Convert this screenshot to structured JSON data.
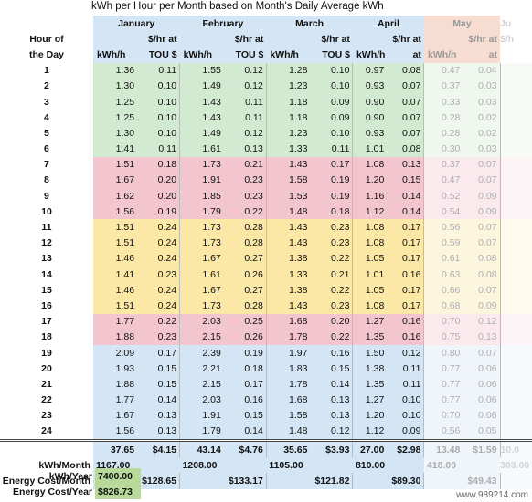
{
  "title": "kWh per Hour per Month based on Month's Daily Average kWh",
  "header": {
    "hour_line1": "Hour of",
    "hour_line2": "the Day",
    "kwh_label": "kWh/h",
    "tou_line1": "$/hr at",
    "tou_line2": "TOU $",
    "at_label": "at"
  },
  "months": [
    {
      "name": "January",
      "tou_header": "TOU $",
      "kwh": [
        "1.36",
        "1.30",
        "1.25",
        "1.25",
        "1.30",
        "1.41",
        "1.51",
        "1.67",
        "1.62",
        "1.56",
        "1.51",
        "1.51",
        "1.46",
        "1.41",
        "1.46",
        "1.51",
        "1.77",
        "1.88",
        "2.09",
        "1.93",
        "1.88",
        "1.77",
        "1.67",
        "1.56"
      ],
      "tou": [
        "0.11",
        "0.10",
        "0.10",
        "0.10",
        "0.10",
        "0.11",
        "0.18",
        "0.20",
        "0.20",
        "0.19",
        "0.24",
        "0.24",
        "0.24",
        "0.23",
        "0.24",
        "0.24",
        "0.22",
        "0.23",
        "0.17",
        "0.15",
        "0.15",
        "0.14",
        "0.13",
        "0.13"
      ],
      "total_kwh": "37.65",
      "total_tou": "$4.15",
      "kwh_month": "1167.00",
      "cost_month": "$128.65"
    },
    {
      "name": "February",
      "tou_header": "TOU $",
      "kwh": [
        "1.55",
        "1.49",
        "1.43",
        "1.43",
        "1.49",
        "1.61",
        "1.73",
        "1.91",
        "1.85",
        "1.79",
        "1.73",
        "1.73",
        "1.67",
        "1.61",
        "1.67",
        "1.73",
        "2.03",
        "2.15",
        "2.39",
        "2.21",
        "2.15",
        "2.03",
        "1.91",
        "1.79"
      ],
      "tou": [
        "0.12",
        "0.12",
        "0.11",
        "0.11",
        "0.12",
        "0.13",
        "0.21",
        "0.23",
        "0.23",
        "0.22",
        "0.28",
        "0.28",
        "0.27",
        "0.26",
        "0.27",
        "0.28",
        "0.25",
        "0.26",
        "0.19",
        "0.18",
        "0.17",
        "0.16",
        "0.15",
        "0.14"
      ],
      "total_kwh": "43.14",
      "total_tou": "$4.76",
      "kwh_month": "1208.00",
      "cost_month": "$133.17"
    },
    {
      "name": "March",
      "tou_header": "TOU $",
      "kwh": [
        "1.28",
        "1.23",
        "1.18",
        "1.18",
        "1.23",
        "1.33",
        "1.43",
        "1.58",
        "1.53",
        "1.48",
        "1.43",
        "1.43",
        "1.38",
        "1.33",
        "1.38",
        "1.43",
        "1.68",
        "1.78",
        "1.97",
        "1.83",
        "1.78",
        "1.68",
        "1.58",
        "1.48"
      ],
      "tou": [
        "0.10",
        "0.10",
        "0.09",
        "0.09",
        "0.10",
        "0.11",
        "0.17",
        "0.19",
        "0.19",
        "0.18",
        "0.23",
        "0.23",
        "0.22",
        "0.21",
        "0.22",
        "0.23",
        "0.20",
        "0.22",
        "0.16",
        "0.15",
        "0.14",
        "0.13",
        "0.13",
        "0.12"
      ],
      "total_kwh": "35.65",
      "total_tou": "$3.93",
      "kwh_month": "1105.00",
      "cost_month": "$121.82"
    },
    {
      "name": "April",
      "tou_header": "at",
      "kwh": [
        "0.97",
        "0.93",
        "0.90",
        "0.90",
        "0.93",
        "1.01",
        "1.08",
        "1.20",
        "1.16",
        "1.12",
        "1.08",
        "1.08",
        "1.05",
        "1.01",
        "1.05",
        "1.08",
        "1.27",
        "1.35",
        "1.50",
        "1.38",
        "1.35",
        "1.27",
        "1.20",
        "1.12"
      ],
      "tou": [
        "0.08",
        "0.07",
        "0.07",
        "0.07",
        "0.07",
        "0.08",
        "0.13",
        "0.15",
        "0.14",
        "0.14",
        "0.17",
        "0.17",
        "0.17",
        "0.16",
        "0.17",
        "0.17",
        "0.16",
        "0.16",
        "0.12",
        "0.11",
        "0.11",
        "0.10",
        "0.10",
        "0.09"
      ],
      "total_kwh": "27.00",
      "total_tou": "$2.98",
      "kwh_month": "810.00",
      "cost_month": "$89.30"
    },
    {
      "name": "May",
      "tou_header": "at",
      "kwh": [
        "0.47",
        "0.37",
        "0.33",
        "0.28",
        "0.28",
        "0.30",
        "0.37",
        "0.47",
        "0.52",
        "0.54",
        "0.56",
        "0.59",
        "0.61",
        "0.63",
        "0.66",
        "0.68",
        "0.70",
        "0.75",
        "0.80",
        "0.77",
        "0.77",
        "0.77",
        "0.70",
        "0.56"
      ],
      "tou": [
        "0.04",
        "0.03",
        "0.03",
        "0.02",
        "0.02",
        "0.03",
        "0.07",
        "0.07",
        "0.09",
        "0.09",
        "0.07",
        "0.07",
        "0.08",
        "0.08",
        "0.07",
        "0.09",
        "0.12",
        "0.13",
        "0.07",
        "0.06",
        "0.06",
        "0.06",
        "0.06",
        "0.05"
      ],
      "total_kwh": "13.48",
      "total_tou": "$1.59",
      "kwh_month": "418.00",
      "cost_month": "$49.43"
    }
  ],
  "june_partial": {
    "name": "Ju",
    "tou_header": "$/h",
    "kwh_month": "303.00",
    "total_kwh": "10.0"
  },
  "summary": {
    "kwh_month_label": "kWh/Month",
    "cost_month_label": "Energy Cost/Month"
  },
  "year": {
    "kwh_label": "kWh/Year",
    "kwh_value": "7400.00",
    "cost_label": "Energy Cost/Year",
    "cost_value": "$826.73"
  },
  "watermark": "www.989214.com",
  "colors": {
    "off_peak": "#d2ebd0",
    "peak": "#f3c6cf",
    "mid_peak": "#fbe7a6",
    "evening": "#d4e5f5",
    "year_box": "#b8d99a"
  }
}
